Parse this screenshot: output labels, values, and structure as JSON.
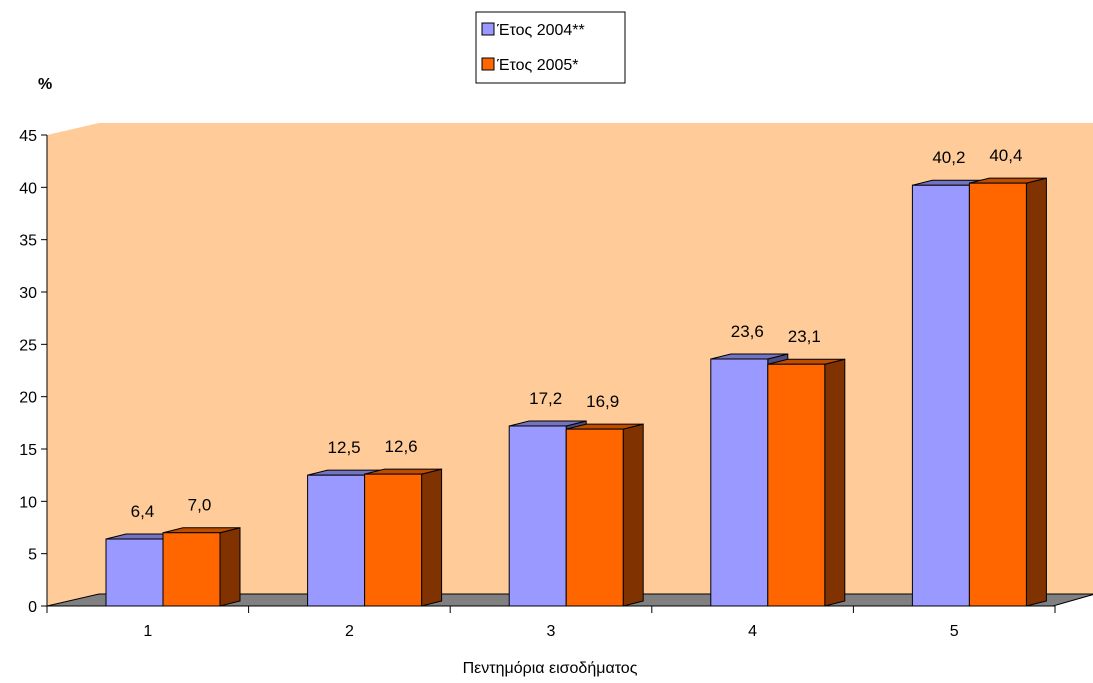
{
  "chart_data": {
    "type": "bar",
    "categories": [
      "1",
      "2",
      "3",
      "4",
      "5"
    ],
    "series": [
      {
        "name": "Έτος 2004**",
        "values": [
          6.4,
          12.5,
          17.2,
          23.6,
          40.2
        ],
        "labels": [
          "6,4",
          "12,5",
          "17,2",
          "23,6",
          "40,2"
        ],
        "color": "#9999ff"
      },
      {
        "name": "Έτος 2005*",
        "values": [
          7.0,
          12.6,
          16.9,
          23.1,
          40.4
        ],
        "labels": [
          "7,0",
          "12,6",
          "16,9",
          "23,1",
          "40,4"
        ],
        "color": "#ff6600"
      }
    ],
    "xlabel": "Πεντημόρια εισοδήματος",
    "ylabel": "%",
    "ylim": [
      0,
      45
    ],
    "yticks": [
      0,
      5,
      10,
      15,
      20,
      25,
      30,
      35,
      40,
      45
    ],
    "grid": false,
    "legend": "top-center",
    "wall_color": "#ffcc99",
    "floor_color": "#808080"
  }
}
